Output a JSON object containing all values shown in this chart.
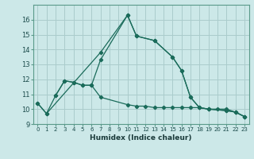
{
  "xlabel": "Humidex (Indice chaleur)",
  "bg_color": "#cce8e8",
  "grid_color": "#aacccc",
  "line_color": "#1a6b5a",
  "xlim": [
    -0.5,
    23.5
  ],
  "ylim": [
    9,
    17
  ],
  "yticks": [
    9,
    10,
    11,
    12,
    13,
    14,
    15,
    16
  ],
  "xticks": [
    0,
    1,
    2,
    3,
    4,
    5,
    6,
    7,
    8,
    9,
    10,
    11,
    12,
    13,
    14,
    15,
    16,
    17,
    18,
    19,
    20,
    21,
    22,
    23
  ],
  "series1_x": [
    0,
    1,
    2,
    3,
    4,
    5,
    6,
    7,
    10,
    11,
    12,
    13,
    14,
    15,
    16,
    17,
    18,
    19,
    20,
    21,
    22,
    23
  ],
  "series1_y": [
    10.4,
    9.7,
    10.9,
    11.9,
    11.8,
    11.6,
    11.6,
    10.8,
    10.3,
    10.2,
    10.2,
    10.1,
    10.1,
    10.1,
    10.1,
    10.1,
    10.1,
    10.0,
    10.0,
    10.0,
    9.8,
    9.5
  ],
  "series2_x": [
    0,
    1,
    7,
    10,
    11,
    13,
    15,
    16,
    17,
    18,
    19,
    21,
    22,
    23
  ],
  "series2_y": [
    10.4,
    9.7,
    13.8,
    16.3,
    14.9,
    14.6,
    13.5,
    12.6,
    10.8,
    10.1,
    10.0,
    9.9,
    9.8,
    9.5
  ],
  "series3_x": [
    2,
    3,
    4,
    5,
    6,
    7,
    10,
    11,
    13,
    15,
    16,
    17,
    18,
    19,
    21,
    22,
    23
  ],
  "series3_y": [
    10.9,
    11.9,
    11.8,
    11.6,
    11.6,
    13.3,
    16.3,
    14.9,
    14.6,
    13.5,
    12.6,
    10.8,
    10.1,
    10.0,
    9.9,
    9.8,
    9.5
  ]
}
